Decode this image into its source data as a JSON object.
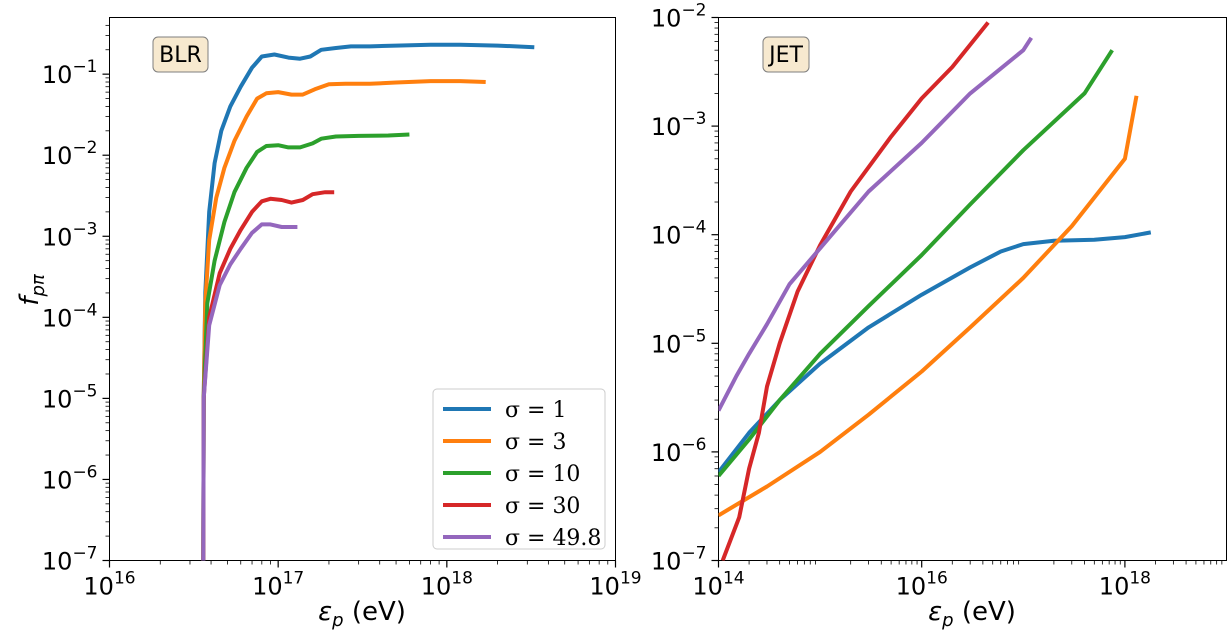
{
  "chart_data": [
    {
      "panel": "left",
      "type": "line",
      "title": "",
      "annotation": "BLR",
      "xlabel": "ε_p  (eV)",
      "ylabel": "f_pπ",
      "xscale": "log",
      "yscale": "log",
      "xlim": [
        1e+16,
        1e+19
      ],
      "ylim": [
        1e-07,
        0.5
      ],
      "x_ticks": [
        {
          "v": 1e+16,
          "label": "10^16"
        },
        {
          "v": 1e+17,
          "label": "10^17"
        },
        {
          "v": 1e+18,
          "label": "10^18"
        },
        {
          "v": 1e+19,
          "label": "10^19"
        }
      ],
      "y_ticks": [
        {
          "v": 1e-07,
          "label": "10^−7"
        },
        {
          "v": 1e-06,
          "label": "10^−6"
        },
        {
          "v": 1e-05,
          "label": "10^−5"
        },
        {
          "v": 0.0001,
          "label": "10^−4"
        },
        {
          "v": 0.001,
          "label": "10^−3"
        },
        {
          "v": 0.01,
          "label": "10^−2"
        },
        {
          "v": 0.1,
          "label": "10^−1"
        }
      ],
      "grid": false,
      "legend_position": "lower right",
      "series": [
        {
          "name": "σ = 1",
          "color": "#1f77b4",
          "points": [
            [
              3.6e+16,
              1e-07
            ],
            [
              3.62e+16,
              1e-05
            ],
            [
              3.7e+16,
              0.0002
            ],
            [
              3.9e+16,
              0.002
            ],
            [
              4.2e+16,
              0.008
            ],
            [
              4.6e+16,
              0.02
            ],
            [
              5.2e+16,
              0.04
            ],
            [
              6e+16,
              0.07
            ],
            [
              7e+16,
              0.12
            ],
            [
              8e+16,
              0.165
            ],
            [
              9.5e+16,
              0.175
            ],
            [
              1.15e+17,
              0.16
            ],
            [
              1.35e+17,
              0.155
            ],
            [
              1.55e+17,
              0.165
            ],
            [
              1.8e+17,
              0.2
            ],
            [
              2.2e+17,
              0.21
            ],
            [
              2.7e+17,
              0.22
            ],
            [
              3.5e+17,
              0.22
            ],
            [
              5e+17,
              0.225
            ],
            [
              8e+17,
              0.23
            ],
            [
              1.2e+18,
              0.23
            ],
            [
              2e+18,
              0.225
            ],
            [
              3.3e+18,
              0.215
            ]
          ]
        },
        {
          "name": "σ = 3",
          "color": "#ff7f0e",
          "points": [
            [
              3.6e+16,
              1e-07
            ],
            [
              3.62e+16,
              1e-05
            ],
            [
              3.7e+16,
              0.00015
            ],
            [
              3.9e+16,
              0.0009
            ],
            [
              4.3e+16,
              0.003
            ],
            [
              4.8e+16,
              0.007
            ],
            [
              5.5e+16,
              0.015
            ],
            [
              6.5e+16,
              0.03
            ],
            [
              7.5e+16,
              0.05
            ],
            [
              8.5e+16,
              0.058
            ],
            [
              1e+17,
              0.06
            ],
            [
              1.2e+17,
              0.056
            ],
            [
              1.4e+17,
              0.056
            ],
            [
              1.65e+17,
              0.065
            ],
            [
              2e+17,
              0.075
            ],
            [
              2.5e+17,
              0.076
            ],
            [
              3.5e+17,
              0.076
            ],
            [
              5e+17,
              0.079
            ],
            [
              8e+17,
              0.082
            ],
            [
              1.2e+18,
              0.082
            ],
            [
              1.7e+18,
              0.08
            ]
          ]
        },
        {
          "name": "σ = 10",
          "color": "#2ca02c",
          "points": [
            [
              3.6e+16,
              1e-07
            ],
            [
              3.62e+16,
              1e-05
            ],
            [
              3.8e+16,
              0.00015
            ],
            [
              4.2e+16,
              0.0005
            ],
            [
              4.8e+16,
              0.0015
            ],
            [
              5.5e+16,
              0.0035
            ],
            [
              6.5e+16,
              0.007
            ],
            [
              7.5e+16,
              0.011
            ],
            [
              8.5e+16,
              0.013
            ],
            [
              1e+17,
              0.0133
            ],
            [
              1.15e+17,
              0.0125
            ],
            [
              1.35e+17,
              0.0125
            ],
            [
              1.6e+17,
              0.014
            ],
            [
              1.8e+17,
              0.016
            ],
            [
              2.2e+17,
              0.017
            ],
            [
              3e+17,
              0.0173
            ],
            [
              4.5e+17,
              0.0175
            ],
            [
              6e+17,
              0.018
            ]
          ]
        },
        {
          "name": "σ = 30",
          "color": "#d62728",
          "points": [
            [
              3.6e+16,
              1e-07
            ],
            [
              3.62e+16,
              1e-05
            ],
            [
              3.9e+16,
              0.0001
            ],
            [
              4.5e+16,
              0.00035
            ],
            [
              5.2e+16,
              0.0007
            ],
            [
              6e+16,
              0.0012
            ],
            [
              7e+16,
              0.002
            ],
            [
              8e+16,
              0.0027
            ],
            [
              9e+16,
              0.0029
            ],
            [
              1.05e+17,
              0.0028
            ],
            [
              1.2e+17,
              0.0026
            ],
            [
              1.4e+17,
              0.0028
            ],
            [
              1.6e+17,
              0.0033
            ],
            [
              1.9e+17,
              0.0035
            ],
            [
              2.15e+17,
              0.0035
            ]
          ]
        },
        {
          "name": "σ = 49.8",
          "color": "#9467bd",
          "points": [
            [
              3.6e+16,
              1e-07
            ],
            [
              3.62e+16,
              1e-05
            ],
            [
              3.9e+16,
              8e-05
            ],
            [
              4.5e+16,
              0.00025
            ],
            [
              5.2e+16,
              0.00045
            ],
            [
              6e+16,
              0.0007
            ],
            [
              7e+16,
              0.0011
            ],
            [
              8e+16,
              0.0014
            ],
            [
              9e+16,
              0.0014
            ],
            [
              1.05e+17,
              0.0013
            ],
            [
              1.15e+17,
              0.0013
            ],
            [
              1.3e+17,
              0.0013
            ]
          ]
        }
      ]
    },
    {
      "panel": "right",
      "type": "line",
      "title": "",
      "annotation": "JET",
      "xlabel": "ε_p  (eV)",
      "ylabel": "",
      "xscale": "log",
      "yscale": "log",
      "xlim": [
        100000000000000.0,
        1e+19
      ],
      "ylim": [
        1e-07,
        0.01
      ],
      "x_ticks": [
        {
          "v": 100000000000000.0,
          "label": "10^14"
        },
        {
          "v": 1e+16,
          "label": "10^16"
        },
        {
          "v": 1e+18,
          "label": "10^18"
        }
      ],
      "y_ticks": [
        {
          "v": 1e-07,
          "label": "10^−7"
        },
        {
          "v": 1e-06,
          "label": "10^−6"
        },
        {
          "v": 1e-05,
          "label": "10^−5"
        },
        {
          "v": 0.0001,
          "label": "10^−4"
        },
        {
          "v": 0.001,
          "label": "10^−3"
        },
        {
          "v": 0.01,
          "label": "10^−2"
        }
      ],
      "grid": false,
      "series": [
        {
          "name": "σ = 1",
          "color": "#1f77b4",
          "points": [
            [
              100000000000000.0,
              6.5e-07
            ],
            [
              200000000000000.0,
              1.5e-06
            ],
            [
              400000000000000.0,
              3e-06
            ],
            [
              1000000000000000.0,
              6.5e-06
            ],
            [
              3000000000000000.0,
              1.4e-05
            ],
            [
              1e+16,
              2.8e-05
            ],
            [
              3e+16,
              5e-05
            ],
            [
              6e+16,
              7e-05
            ],
            [
              1e+17,
              8.2e-05
            ],
            [
              2e+17,
              8.8e-05
            ],
            [
              5e+17,
              9e-05
            ],
            [
              1e+18,
              9.5e-05
            ],
            [
              1.8e+18,
              0.000105
            ]
          ]
        },
        {
          "name": "σ = 3",
          "color": "#ff7f0e",
          "points": [
            [
              100000000000000.0,
              2.6e-07
            ],
            [
              300000000000000.0,
              4.8e-07
            ],
            [
              1000000000000000.0,
              1e-06
            ],
            [
              3000000000000000.0,
              2.2e-06
            ],
            [
              1e+16,
              5.5e-06
            ],
            [
              3e+16,
              1.4e-05
            ],
            [
              1e+17,
              4e-05
            ],
            [
              3e+17,
              0.00012
            ],
            [
              1e+18,
              0.0005
            ],
            [
              1.3e+18,
              0.0019
            ]
          ]
        },
        {
          "name": "σ = 10",
          "color": "#2ca02c",
          "points": [
            [
              100000000000000.0,
              6e-07
            ],
            [
              200000000000000.0,
              1.3e-06
            ],
            [
              400000000000000.0,
              3e-06
            ],
            [
              1000000000000000.0,
              8e-06
            ],
            [
              3000000000000000.0,
              2.2e-05
            ],
            [
              1e+16,
              6.5e-05
            ],
            [
              3e+16,
              0.00019
            ],
            [
              1e+17,
              0.0006
            ],
            [
              4e+17,
              0.002
            ],
            [
              7.5e+17,
              0.005
            ]
          ]
        },
        {
          "name": "σ = 30",
          "color": "#d62728",
          "points": [
            [
              110000000000000.0,
              1e-07
            ],
            [
              160000000000000.0,
              2.5e-07
            ],
            [
              200000000000000.0,
              7e-07
            ],
            [
              250000000000000.0,
              1.5e-06
            ],
            [
              300000000000000.0,
              4e-06
            ],
            [
              400000000000000.0,
              1e-05
            ],
            [
              600000000000000.0,
              3e-05
            ],
            [
              1000000000000000.0,
              8e-05
            ],
            [
              2000000000000000.0,
              0.00025
            ],
            [
              5000000000000000.0,
              0.0008
            ],
            [
              1e+16,
              0.0018
            ],
            [
              2e+16,
              0.0035
            ],
            [
              4.5e+16,
              0.009
            ]
          ]
        },
        {
          "name": "σ = 49.8",
          "color": "#9467bd",
          "points": [
            [
              100000000000000.0,
              2.4e-06
            ],
            [
              150000000000000.0,
              5e-06
            ],
            [
              200000000000000.0,
              8e-06
            ],
            [
              300000000000000.0,
              1.5e-05
            ],
            [
              500000000000000.0,
              3.5e-05
            ],
            [
              1000000000000000.0,
              7.5e-05
            ],
            [
              3000000000000000.0,
              0.00025
            ],
            [
              1e+16,
              0.0007
            ],
            [
              3e+16,
              0.002
            ],
            [
              1e+17,
              0.005
            ],
            [
              1.2e+17,
              0.0065
            ]
          ]
        }
      ]
    }
  ]
}
